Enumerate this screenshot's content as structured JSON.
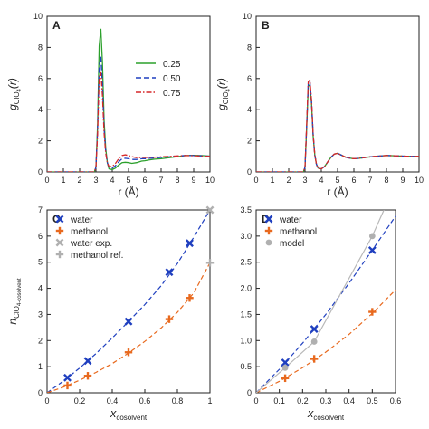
{
  "panels": [
    {
      "id": "A",
      "letter": "A",
      "type": "line",
      "xlabel": "r (Å)",
      "ylabel_main": "g",
      "ylabel_sub": "ClO",
      "ylabel_subsub": "4",
      "ylabel_tail": "(r)",
      "xlim": [
        0,
        10
      ],
      "ylim": [
        0,
        10
      ],
      "xticks": [
        0,
        1,
        2,
        3,
        4,
        5,
        6,
        7,
        8,
        9,
        10
      ],
      "yticks": [
        0,
        2,
        4,
        6,
        8,
        10
      ],
      "legend": {
        "position": "center-right",
        "entries": [
          {
            "label": "0.25",
            "color": "#2ca02c",
            "dash": "solid"
          },
          {
            "label": "0.50",
            "color": "#1f3fbf",
            "dash": "dashed"
          },
          {
            "label": "0.75",
            "color": "#d62728",
            "dash": "dashdot"
          }
        ]
      },
      "series": [
        {
          "name": "0.25",
          "color": "#2ca02c",
          "dash": "solid",
          "x": [
            0,
            2.9,
            3.0,
            3.1,
            3.2,
            3.3,
            3.4,
            3.5,
            3.6,
            3.7,
            3.8,
            4.0,
            4.2,
            4.4,
            4.6,
            4.8,
            5.0,
            5.2,
            5.5,
            5.8,
            6.0,
            6.3,
            6.6,
            7.0,
            7.5,
            8.0,
            8.5,
            9.0,
            9.5,
            10.0
          ],
          "y": [
            0,
            0,
            0.3,
            3.0,
            8.1,
            9.2,
            7.0,
            3.3,
            1.5,
            0.6,
            0.2,
            0.15,
            0.25,
            0.45,
            0.6,
            0.62,
            0.6,
            0.55,
            0.6,
            0.7,
            0.72,
            0.78,
            0.82,
            0.85,
            0.92,
            0.98,
            1.05,
            1.07,
            1.05,
            1.02
          ]
        },
        {
          "name": "0.50",
          "color": "#1f3fbf",
          "dash": "dashed",
          "x": [
            0,
            2.9,
            3.0,
            3.1,
            3.2,
            3.3,
            3.4,
            3.5,
            3.6,
            3.7,
            3.8,
            4.0,
            4.2,
            4.4,
            4.6,
            4.8,
            5.0,
            5.2,
            5.5,
            5.8,
            6.0,
            6.3,
            6.6,
            7.0,
            7.5,
            8.0,
            8.5,
            9.0,
            9.5,
            10.0
          ],
          "y": [
            0,
            0,
            0.3,
            2.7,
            6.8,
            7.4,
            5.6,
            2.8,
            1.3,
            0.6,
            0.3,
            0.25,
            0.4,
            0.65,
            0.85,
            0.88,
            0.85,
            0.8,
            0.8,
            0.85,
            0.85,
            0.88,
            0.9,
            0.93,
            0.97,
            1.02,
            1.06,
            1.05,
            1.03,
            1.01
          ]
        },
        {
          "name": "0.75",
          "color": "#d62728",
          "dash": "dashdot",
          "x": [
            0,
            2.9,
            3.0,
            3.1,
            3.2,
            3.3,
            3.4,
            3.5,
            3.6,
            3.7,
            3.8,
            4.0,
            4.2,
            4.4,
            4.6,
            4.8,
            5.0,
            5.2,
            5.5,
            5.8,
            6.0,
            6.3,
            6.6,
            7.0,
            7.5,
            8.0,
            8.5,
            9.0,
            9.5,
            10.0
          ],
          "y": [
            0,
            0,
            0.3,
            2.4,
            6.1,
            6.4,
            4.9,
            2.5,
            1.2,
            0.6,
            0.35,
            0.35,
            0.55,
            0.85,
            1.05,
            1.1,
            1.05,
            0.98,
            0.92,
            0.93,
            0.93,
            0.93,
            0.95,
            0.97,
            1.0,
            1.03,
            1.05,
            1.04,
            1.02,
            1.0
          ]
        }
      ]
    },
    {
      "id": "B",
      "letter": "B",
      "type": "line",
      "xlabel": "r (Å)",
      "ylabel_main": "g",
      "ylabel_sub": "ClO",
      "ylabel_subsub": "4",
      "ylabel_tail": "(r)",
      "xlim": [
        0,
        10
      ],
      "ylim": [
        0,
        10
      ],
      "xticks": [
        0,
        1,
        2,
        3,
        4,
        5,
        6,
        7,
        8,
        9,
        10
      ],
      "yticks": [
        0,
        2,
        4,
        6,
        8,
        10
      ],
      "series": [
        {
          "name": "0.25",
          "color": "#2ca02c",
          "dash": "solid",
          "x": [
            0,
            2.9,
            3.0,
            3.1,
            3.2,
            3.3,
            3.4,
            3.5,
            3.6,
            3.7,
            3.8,
            4.0,
            4.2,
            4.4,
            4.6,
            4.8,
            5.0,
            5.2,
            5.5,
            5.8,
            6.0,
            6.3,
            6.6,
            7.0,
            7.5,
            8.0,
            8.5,
            9.0,
            9.5,
            10.0
          ],
          "y": [
            0,
            0,
            0.3,
            2.8,
            5.5,
            5.6,
            4.4,
            2.3,
            1.1,
            0.5,
            0.25,
            0.2,
            0.35,
            0.65,
            0.95,
            1.15,
            1.2,
            1.1,
            0.95,
            0.88,
            0.85,
            0.87,
            0.92,
            0.97,
            1.02,
            1.06,
            1.04,
            1.02,
            1.0,
            1.0
          ]
        },
        {
          "name": "0.50",
          "color": "#1f3fbf",
          "dash": "dashed",
          "x": [
            0,
            2.9,
            3.0,
            3.1,
            3.2,
            3.3,
            3.4,
            3.5,
            3.6,
            3.7,
            3.8,
            4.0,
            4.2,
            4.4,
            4.6,
            4.8,
            5.0,
            5.2,
            5.5,
            5.8,
            6.0,
            6.3,
            6.6,
            7.0,
            7.5,
            8.0,
            8.5,
            9.0,
            9.5,
            10.0
          ],
          "y": [
            0,
            0,
            0.3,
            2.9,
            5.7,
            5.8,
            4.5,
            2.4,
            1.1,
            0.5,
            0.25,
            0.2,
            0.35,
            0.65,
            0.95,
            1.15,
            1.2,
            1.1,
            0.95,
            0.88,
            0.85,
            0.87,
            0.92,
            0.97,
            1.02,
            1.06,
            1.04,
            1.02,
            1.0,
            1.0
          ]
        },
        {
          "name": "0.75",
          "color": "#d62728",
          "dash": "dashdot",
          "x": [
            0,
            2.9,
            3.0,
            3.1,
            3.2,
            3.3,
            3.4,
            3.5,
            3.6,
            3.7,
            3.8,
            4.0,
            4.2,
            4.4,
            4.6,
            4.8,
            5.0,
            5.2,
            5.5,
            5.8,
            6.0,
            6.3,
            6.6,
            7.0,
            7.5,
            8.0,
            8.5,
            9.0,
            9.5,
            10.0
          ],
          "y": [
            0,
            0,
            0.3,
            3.0,
            5.8,
            5.9,
            4.6,
            2.4,
            1.1,
            0.5,
            0.25,
            0.2,
            0.35,
            0.65,
            0.95,
            1.15,
            1.2,
            1.1,
            0.95,
            0.88,
            0.85,
            0.87,
            0.92,
            0.97,
            1.02,
            1.06,
            1.04,
            1.02,
            1.0,
            1.0
          ]
        }
      ]
    },
    {
      "id": "C",
      "letter": "C",
      "type": "scatter",
      "xlabel_main": "x",
      "xlabel_sub": "cosolvent",
      "ylabel_main": "n",
      "ylabel_sub": "ClO",
      "ylabel_subsub": "4",
      "ylabel_tail": "-cosolvent",
      "xlim": [
        0,
        1
      ],
      "ylim": [
        0,
        7
      ],
      "xticks": [
        0,
        0.2,
        0.4,
        0.6,
        0.8,
        1
      ],
      "xticklabels": [
        "0",
        "0.2",
        "0.4",
        "0.6",
        "0.8",
        "1"
      ],
      "yticks": [
        0,
        1,
        2,
        3,
        4,
        5,
        6,
        7
      ],
      "legend": {
        "position": "top-left",
        "entries": [
          {
            "label": "water",
            "color": "#1f3fbf",
            "marker": "x"
          },
          {
            "label": "methanol",
            "color": "#e8691e",
            "marker": "+"
          },
          {
            "label": "water exp.",
            "color": "#b0b0b0",
            "marker": "x"
          },
          {
            "label": "methanol ref.",
            "color": "#b0b0b0",
            "marker": "+"
          }
        ]
      },
      "series": [
        {
          "name": "water",
          "color": "#1f3fbf",
          "marker": "x",
          "x": [
            0.125,
            0.25,
            0.5,
            0.75,
            0.875
          ],
          "y": [
            0.58,
            1.22,
            2.73,
            4.62,
            5.73
          ]
        },
        {
          "name": "methanol",
          "color": "#e8691e",
          "marker": "+",
          "x": [
            0.125,
            0.25,
            0.5,
            0.75,
            0.875
          ],
          "y": [
            0.28,
            0.65,
            1.55,
            2.82,
            3.63
          ]
        },
        {
          "name": "water exp.",
          "color": "#b0b0b0",
          "marker": "x",
          "x": [
            1.0
          ],
          "y": [
            7.0
          ]
        },
        {
          "name": "methanol ref.",
          "color": "#b0b0b0",
          "marker": "+",
          "x": [
            1.0
          ],
          "y": [
            4.98
          ]
        }
      ],
      "fits": [
        {
          "name": "water",
          "color": "#1f3fbf",
          "x": [
            0,
            0.1,
            0.2,
            0.3,
            0.4,
            0.5,
            0.6,
            0.7,
            0.8,
            0.9,
            1.0
          ],
          "y": [
            0,
            0.45,
            0.95,
            1.5,
            2.1,
            2.73,
            3.38,
            4.1,
            4.95,
            5.95,
            7.0
          ]
        },
        {
          "name": "methanol",
          "color": "#e8691e",
          "x": [
            0,
            0.1,
            0.2,
            0.3,
            0.4,
            0.5,
            0.6,
            0.7,
            0.8,
            0.9,
            1.0
          ],
          "y": [
            0,
            0.22,
            0.48,
            0.78,
            1.12,
            1.52,
            1.97,
            2.48,
            3.08,
            3.82,
            4.98
          ]
        }
      ]
    },
    {
      "id": "D",
      "letter": "D",
      "type": "scatter",
      "xlabel_main": "x",
      "xlabel_sub": "cosolvent",
      "xlim": [
        0,
        0.6
      ],
      "ylim": [
        0,
        3.5
      ],
      "xticks": [
        0,
        0.1,
        0.2,
        0.3,
        0.4,
        0.5,
        0.6
      ],
      "xticklabels": [
        "0",
        "0.1",
        "0.2",
        "0.3",
        "0.4",
        "0.5",
        "0.6"
      ],
      "yticks": [
        0,
        0.5,
        1,
        1.5,
        2,
        2.5,
        3,
        3.5
      ],
      "yticklabels": [
        "0",
        "0.5",
        "1.0",
        "1.5",
        "2.0",
        "2.5",
        "3.0",
        "3.5"
      ],
      "legend": {
        "position": "top-left",
        "entries": [
          {
            "label": "water",
            "color": "#1f3fbf",
            "marker": "x"
          },
          {
            "label": "methanol",
            "color": "#e8691e",
            "marker": "+"
          },
          {
            "label": "model",
            "color": "#b0b0b0",
            "marker": "o"
          }
        ]
      },
      "series": [
        {
          "name": "water",
          "color": "#1f3fbf",
          "marker": "x",
          "x": [
            0.125,
            0.25,
            0.5
          ],
          "y": [
            0.58,
            1.22,
            2.73
          ]
        },
        {
          "name": "methanol",
          "color": "#e8691e",
          "marker": "+",
          "x": [
            0.125,
            0.25,
            0.5
          ],
          "y": [
            0.28,
            0.65,
            1.55
          ]
        },
        {
          "name": "model",
          "color": "#b0b0b0",
          "marker": "o",
          "x": [
            0.125,
            0.25,
            0.5
          ],
          "y": [
            0.48,
            0.98,
            3.0
          ]
        }
      ],
      "fits": [
        {
          "name": "water",
          "color": "#1f3fbf",
          "dash": "dashed",
          "x": [
            0,
            0.1,
            0.2,
            0.3,
            0.4,
            0.5,
            0.6
          ],
          "y": [
            0,
            0.45,
            0.95,
            1.5,
            2.1,
            2.73,
            3.38
          ]
        },
        {
          "name": "methanol",
          "color": "#e8691e",
          "dash": "dashed",
          "x": [
            0,
            0.1,
            0.2,
            0.3,
            0.4,
            0.5,
            0.6
          ],
          "y": [
            0,
            0.22,
            0.48,
            0.78,
            1.12,
            1.52,
            1.97
          ]
        },
        {
          "name": "model",
          "color": "#b8b8b8",
          "dash": "solid",
          "x": [
            0,
            0.125,
            0.25,
            0.5,
            0.55
          ],
          "y": [
            0,
            0.48,
            0.98,
            3.0,
            3.5
          ]
        }
      ]
    }
  ]
}
